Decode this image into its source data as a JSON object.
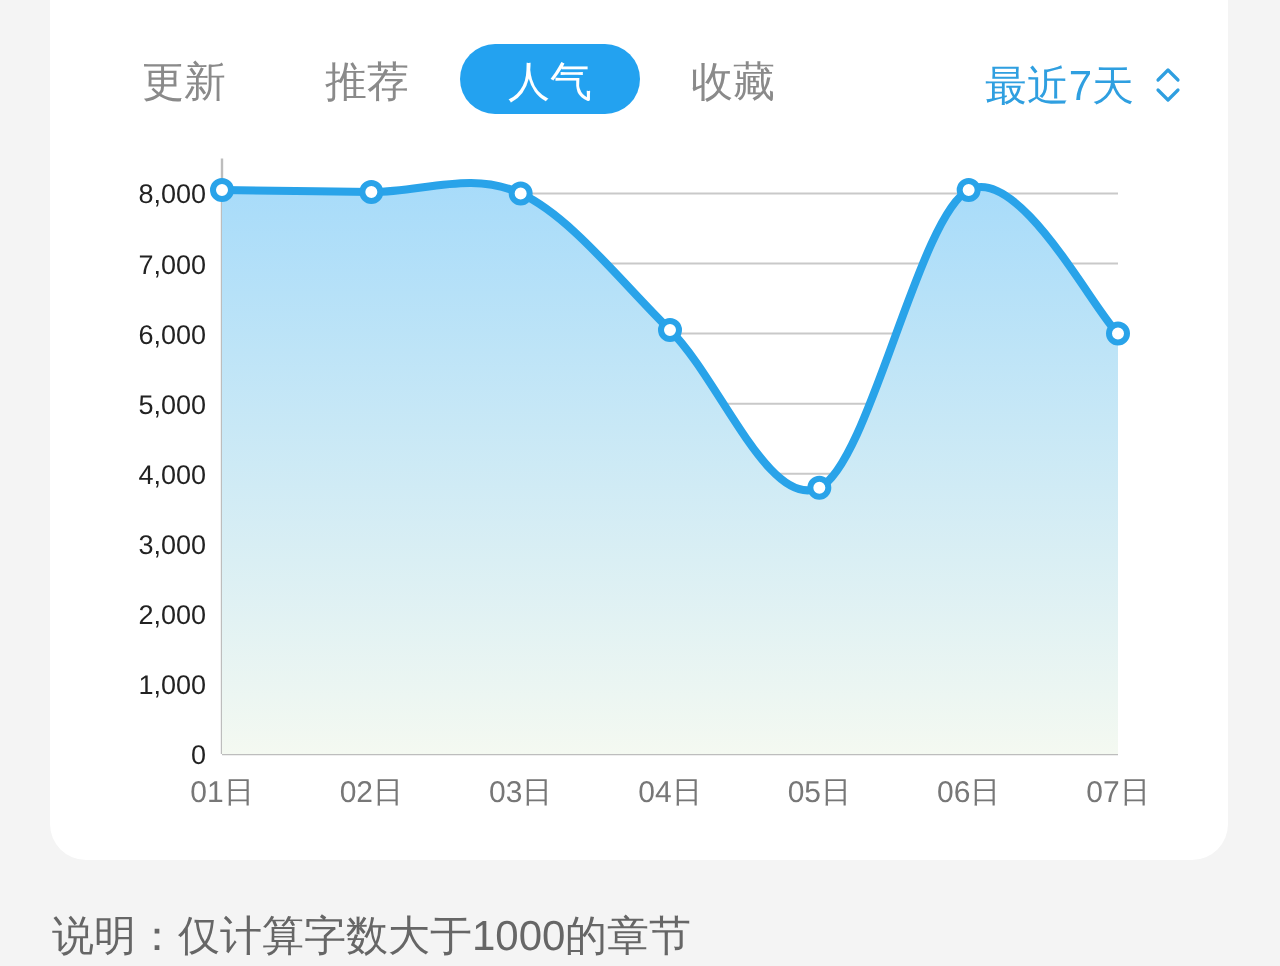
{
  "chart_data": {
    "type": "line",
    "subtitle": "最近7天",
    "annotations": [
      "更新",
      "推荐",
      "人气",
      "收藏",
      "说明：仅计算字数大于1000的章节"
    ],
    "categories": [
      "01日",
      "02日",
      "03日",
      "04日",
      "05日",
      "06日",
      "07日"
    ],
    "values": [
      8050,
      8020,
      8000,
      6050,
      3800,
      8050,
      6000
    ],
    "color": "#29a3e9",
    "ylim": [
      0,
      8500
    ],
    "yticks": [
      0,
      {
        "value": 1000,
        "label": "1,000"
      },
      {
        "value": 2000,
        "label": "2,000"
      },
      {
        "value": 3000,
        "label": "3,000"
      },
      {
        "value": 4000,
        "label": "4,000"
      },
      {
        "value": 5000,
        "label": "5,000"
      },
      {
        "value": 6000,
        "label": "6,000"
      },
      {
        "value": 7000,
        "label": "7,000"
      },
      {
        "value": 8000,
        "label": "8,000"
      }
    ],
    "grid": "y",
    "marker": "circle"
  }
}
